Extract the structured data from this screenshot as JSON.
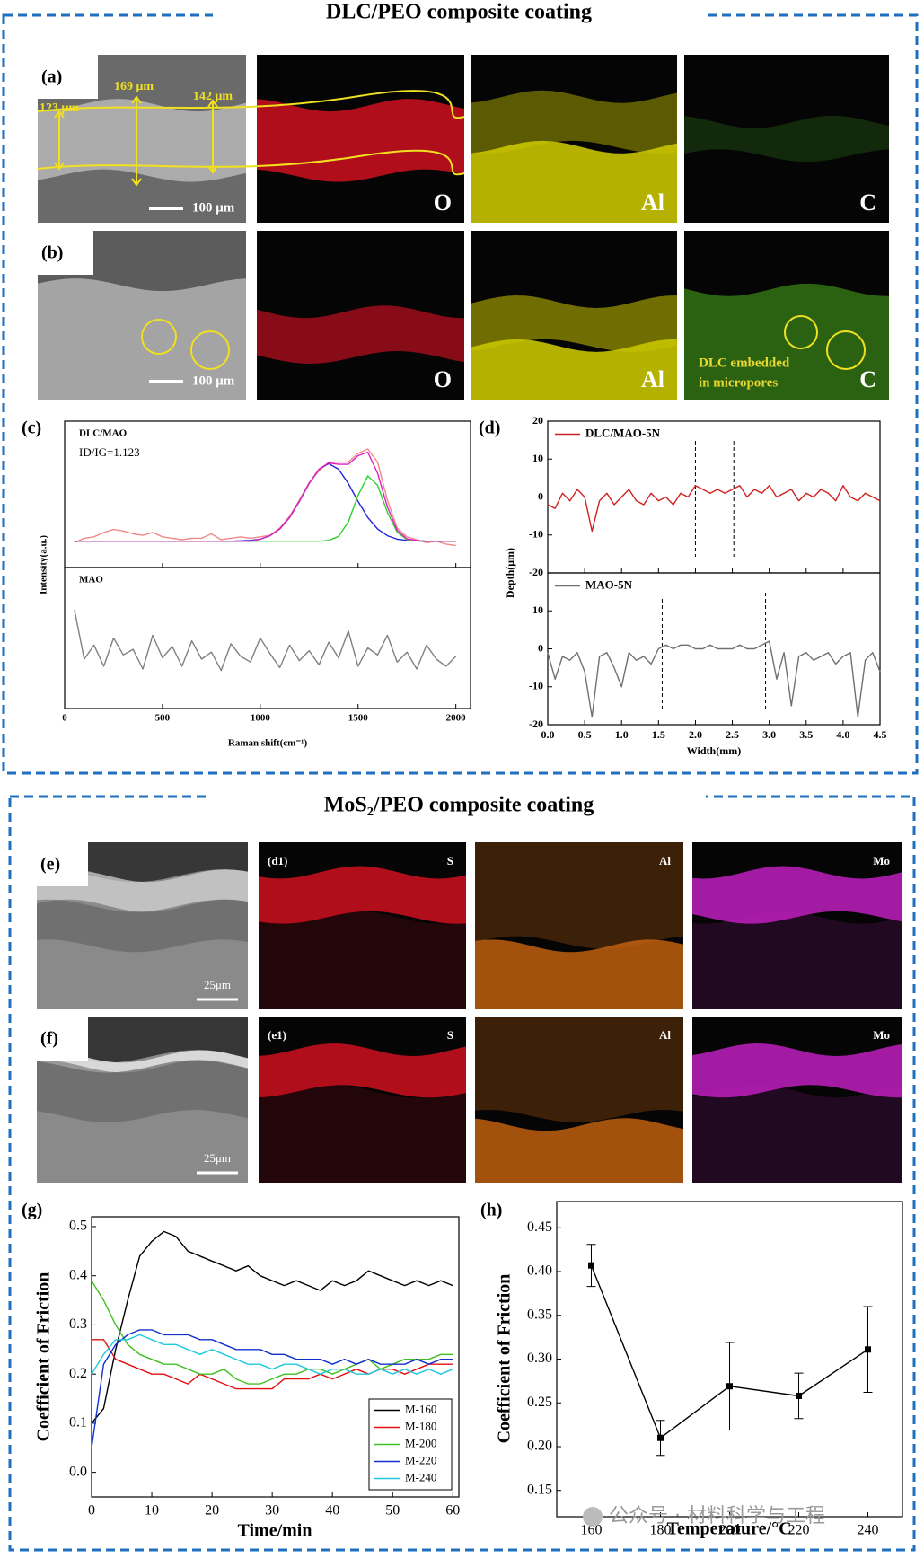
{
  "sections": [
    {
      "title": "DLC/PEO composite coating"
    },
    {
      "title": "MoS₂/PEO composite coating"
    }
  ],
  "panels": {
    "a": {
      "label": "(a)",
      "annotations": [
        "123 μm",
        "169 μm",
        "142 μm"
      ],
      "scale_bar": "100 μm",
      "maps": [
        "O",
        "Al",
        "C"
      ]
    },
    "b": {
      "label": "(b)",
      "scale_bar": "100 μm",
      "maps": [
        "O",
        "Al",
        "C"
      ],
      "note": [
        "DLC embedded",
        "in micropores"
      ]
    },
    "e": {
      "label": "(e)",
      "scale_bar": "25μm",
      "map_tag": "(d1)",
      "maps": [
        "S",
        "Al",
        "Mo"
      ]
    },
    "f": {
      "label": "(f)",
      "scale_bar": "25μm",
      "map_tag": "(e1)",
      "maps": [
        "S",
        "Al",
        "Mo"
      ]
    }
  },
  "watermark": "公众号 · 材料科学与工程",
  "chart_data": [
    {
      "type": "line",
      "label": "(c)",
      "xlabel": "Raman shift(cm⁻¹)",
      "ylabel": "Intensity(a.u.)",
      "xlim": [
        0,
        2075
      ],
      "xticks": [
        0,
        500,
        1000,
        1500,
        2000
      ],
      "x": [
        50,
        100,
        150,
        200,
        250,
        300,
        350,
        400,
        450,
        500,
        550,
        600,
        650,
        700,
        750,
        800,
        850,
        900,
        950,
        1000,
        1050,
        1100,
        1150,
        1200,
        1250,
        1300,
        1350,
        1400,
        1450,
        1500,
        1550,
        1600,
        1650,
        1700,
        1750,
        1800,
        1850,
        1900,
        1950,
        2000
      ],
      "panels": [
        {
          "annotations": [
            "DLC/MAO",
            "ID/IG=1.123"
          ],
          "ylim": [
            0,
            1
          ],
          "series": [
            {
              "color": "#f08a8a",
              "values": [
                0.17,
                0.2,
                0.21,
                0.24,
                0.26,
                0.25,
                0.23,
                0.22,
                0.24,
                0.21,
                0.2,
                0.19,
                0.2,
                0.2,
                0.23,
                0.19,
                0.2,
                0.21,
                0.2,
                0.21,
                0.22,
                0.27,
                0.35,
                0.46,
                0.58,
                0.66,
                0.72,
                0.72,
                0.72,
                0.78,
                0.81,
                0.72,
                0.46,
                0.27,
                0.21,
                0.19,
                0.17,
                0.18,
                0.16,
                0.15
              ]
            },
            {
              "color": "#2020e0",
              "values": [
                0.18,
                0.18,
                0.18,
                0.18,
                0.18,
                0.18,
                0.18,
                0.18,
                0.18,
                0.18,
                0.18,
                0.18,
                0.18,
                0.18,
                0.18,
                0.18,
                0.18,
                0.182,
                0.185,
                0.194,
                0.217,
                0.263,
                0.342,
                0.452,
                0.574,
                0.672,
                0.71,
                0.672,
                0.574,
                0.452,
                0.342,
                0.263,
                0.217,
                0.194,
                0.185,
                0.182,
                0.18,
                0.18,
                0.18,
                0.18
              ]
            },
            {
              "color": "#30d030",
              "values": [
                0.18,
                0.18,
                0.18,
                0.18,
                0.18,
                0.18,
                0.18,
                0.18,
                0.18,
                0.18,
                0.18,
                0.18,
                0.18,
                0.18,
                0.18,
                0.18,
                0.18,
                0.18,
                0.18,
                0.18,
                0.18,
                0.18,
                0.18,
                0.18,
                0.18,
                0.18,
                0.185,
                0.213,
                0.311,
                0.492,
                0.626,
                0.562,
                0.377,
                0.241,
                0.191,
                0.182,
                0.18,
                0.18,
                0.18,
                0.18
              ]
            },
            {
              "color": "#e020c0",
              "values": [
                0.18,
                0.18,
                0.18,
                0.18,
                0.18,
                0.18,
                0.18,
                0.18,
                0.18,
                0.18,
                0.18,
                0.18,
                0.18,
                0.18,
                0.18,
                0.18,
                0.18,
                0.18,
                0.18,
                0.194,
                0.217,
                0.263,
                0.342,
                0.452,
                0.574,
                0.672,
                0.715,
                0.705,
                0.705,
                0.764,
                0.788,
                0.645,
                0.414,
                0.255,
                0.196,
                0.184,
                0.18,
                0.18,
                0.18,
                0.18
              ]
            }
          ]
        },
        {
          "annotations": [
            "MAO"
          ],
          "ylim": [
            0,
            1
          ],
          "series": [
            {
              "color": "#808080",
              "values": [
                0.7,
                0.35,
                0.45,
                0.3,
                0.5,
                0.38,
                0.42,
                0.28,
                0.52,
                0.36,
                0.44,
                0.3,
                0.48,
                0.35,
                0.4,
                0.27,
                0.46,
                0.37,
                0.33,
                0.5,
                0.39,
                0.29,
                0.45,
                0.34,
                0.41,
                0.31,
                0.47,
                0.36,
                0.55,
                0.3,
                0.43,
                0.38,
                0.52,
                0.33,
                0.4,
                0.28,
                0.45,
                0.35,
                0.3,
                0.37
              ]
            }
          ]
        }
      ]
    },
    {
      "type": "line",
      "label": "(d)",
      "xlabel": "Width(mm)",
      "ylabel": "Depth(μm)",
      "xlim": [
        0,
        4.5
      ],
      "xticks": [
        {
          "value": 0,
          "label": "0.0"
        },
        0.5,
        {
          "value": 1,
          "label": "1.0"
        },
        1.5,
        {
          "value": 2,
          "label": "2.0"
        },
        2.5,
        {
          "value": 3,
          "label": "3.0"
        },
        3.5,
        {
          "value": 4,
          "label": "4.0"
        },
        4.5
      ],
      "x": [
        0,
        0.1,
        0.2,
        0.3,
        0.4,
        0.5,
        0.6,
        0.7,
        0.8,
        0.9,
        1,
        1.1,
        1.2,
        1.3,
        1.4,
        1.5,
        1.6,
        1.7,
        1.8,
        1.9,
        2,
        2.1,
        2.2,
        2.3,
        2.4,
        2.5,
        2.6,
        2.7,
        2.8,
        2.9,
        3,
        3.1,
        3.2,
        3.3,
        3.4,
        3.5,
        3.6,
        3.7,
        3.8,
        3.9,
        4,
        4.1,
        4.2,
        4.3,
        4.4,
        4.5
      ],
      "panels": [
        {
          "ylim": [
            -20,
            20
          ],
          "yticks": [
            -20,
            -10,
            0,
            10,
            20
          ],
          "legend": "upper left",
          "vlines": [
            2.0,
            2.52
          ],
          "series": [
            {
              "name": "DLC/MAO-5N",
              "color": "#d02020",
              "values": [
                -2,
                -3,
                1,
                -1,
                2,
                0,
                -9,
                -1,
                1,
                -2,
                0,
                2,
                -1,
                -2,
                1,
                -1,
                0,
                -2,
                1,
                0,
                3,
                2,
                1,
                2,
                1,
                2,
                3,
                0,
                2,
                1,
                3,
                0,
                1,
                2,
                -1,
                1,
                0,
                2,
                1,
                -1,
                3,
                0,
                -1,
                1,
                0,
                -1
              ]
            }
          ]
        },
        {
          "ylim": [
            -20,
            20
          ],
          "yticks": [
            -20,
            -10,
            0,
            10
          ],
          "legend": "upper left",
          "vlines": [
            1.55,
            2.95
          ],
          "series": [
            {
              "name": "MAO-5N",
              "color": "#707070",
              "values": [
                -1,
                -8,
                -2,
                -3,
                -1,
                -6,
                -18,
                -2,
                -1,
                -5,
                -10,
                -1,
                -3,
                -2,
                -4,
                0,
                1,
                0,
                1,
                1,
                0,
                0,
                1,
                0,
                0,
                0,
                1,
                0,
                0,
                1,
                2,
                -8,
                -1,
                -15,
                -2,
                -1,
                -3,
                -2,
                -1,
                -4,
                -2,
                -1,
                -18,
                -3,
                -1,
                -6
              ]
            }
          ]
        }
      ]
    },
    {
      "type": "line",
      "label": "(g)",
      "xlabel": "Time/min",
      "ylabel": "Coefficient of Friction",
      "xlim": [
        0,
        61
      ],
      "xticks": [
        0,
        10,
        20,
        30,
        40,
        50,
        60
      ],
      "ylim": [
        -0.05,
        0.52
      ],
      "yticks": [
        {
          "value": 0,
          "label": "0.0"
        },
        0.1,
        0.2,
        0.3,
        0.4,
        0.5
      ],
      "legend": "lower right",
      "x": [
        0,
        2,
        4,
        6,
        8,
        10,
        12,
        14,
        16,
        18,
        20,
        22,
        24,
        26,
        28,
        30,
        32,
        34,
        36,
        38,
        40,
        42,
        44,
        46,
        48,
        50,
        52,
        54,
        56,
        58,
        60
      ],
      "series": [
        {
          "name": "M-160",
          "color": "#000000",
          "values": [
            0.1,
            0.13,
            0.25,
            0.35,
            0.44,
            0.47,
            0.49,
            0.48,
            0.45,
            0.44,
            0.43,
            0.42,
            0.41,
            0.42,
            0.4,
            0.39,
            0.38,
            0.39,
            0.38,
            0.37,
            0.39,
            0.38,
            0.39,
            0.41,
            0.4,
            0.39,
            0.38,
            0.39,
            0.38,
            0.39,
            0.38
          ]
        },
        {
          "name": "M-180",
          "color": "#e01010",
          "values": [
            0.27,
            0.27,
            0.23,
            0.22,
            0.21,
            0.2,
            0.2,
            0.19,
            0.18,
            0.2,
            0.19,
            0.18,
            0.17,
            0.17,
            0.17,
            0.17,
            0.19,
            0.19,
            0.19,
            0.2,
            0.19,
            0.2,
            0.21,
            0.2,
            0.21,
            0.21,
            0.2,
            0.21,
            0.22,
            0.22,
            0.22
          ]
        },
        {
          "name": "M-200",
          "color": "#40c020",
          "values": [
            0.39,
            0.35,
            0.3,
            0.26,
            0.24,
            0.23,
            0.22,
            0.22,
            0.21,
            0.2,
            0.2,
            0.21,
            0.19,
            0.18,
            0.18,
            0.19,
            0.2,
            0.2,
            0.21,
            0.21,
            0.2,
            0.21,
            0.22,
            0.23,
            0.21,
            0.22,
            0.23,
            0.23,
            0.23,
            0.24,
            0.24
          ]
        },
        {
          "name": "M-220",
          "color": "#1030d0",
          "values": [
            0.05,
            0.22,
            0.26,
            0.28,
            0.29,
            0.29,
            0.28,
            0.28,
            0.28,
            0.27,
            0.27,
            0.26,
            0.25,
            0.25,
            0.25,
            0.24,
            0.24,
            0.23,
            0.23,
            0.23,
            0.22,
            0.23,
            0.22,
            0.23,
            0.22,
            0.22,
            0.22,
            0.23,
            0.22,
            0.23,
            0.23
          ]
        },
        {
          "name": "M-240",
          "color": "#20c8e0",
          "values": [
            0.2,
            0.24,
            0.27,
            0.27,
            0.28,
            0.27,
            0.26,
            0.26,
            0.25,
            0.24,
            0.25,
            0.24,
            0.23,
            0.22,
            0.22,
            0.21,
            0.22,
            0.22,
            0.21,
            0.2,
            0.21,
            0.21,
            0.2,
            0.2,
            0.21,
            0.2,
            0.21,
            0.2,
            0.21,
            0.2,
            0.21
          ]
        }
      ]
    },
    {
      "type": "line",
      "label": "(h)",
      "xlabel": "Temperature/°C",
      "ylabel": "Coefficient of Friction",
      "xlim": [
        150,
        250
      ],
      "xticks": [
        160,
        180,
        200,
        220,
        240
      ],
      "ylim": [
        0.12,
        0.48
      ],
      "yticks": [
        0.15,
        {
          "value": 0.2,
          "label": "0.20"
        },
        0.25,
        {
          "value": 0.3,
          "label": "0.30"
        },
        0.35,
        {
          "value": 0.4,
          "label": "0.40"
        },
        0.45
      ],
      "marker": "square",
      "x": [
        160,
        180,
        200,
        220,
        240
      ],
      "series": [
        {
          "color": "#000000",
          "values": [
            0.407,
            0.21,
            0.269,
            0.258,
            0.311
          ],
          "errors": [
            0.024,
            0.02,
            0.05,
            0.026,
            0.049
          ]
        }
      ]
    }
  ]
}
